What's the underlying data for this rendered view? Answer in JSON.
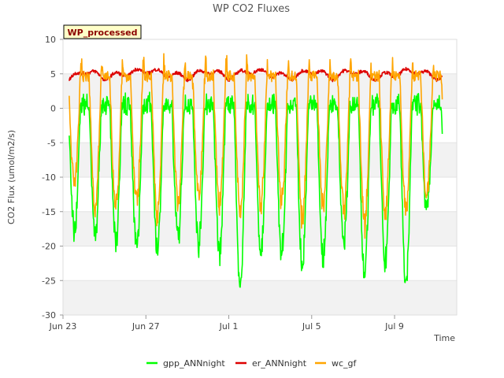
{
  "chart_data": {
    "type": "line",
    "title": "WP CO2 Fluxes",
    "xlabel": "Time",
    "ylabel": "CO2 Flux (umol/m2/s)",
    "badge": "WP_processed",
    "ylim": [
      -30,
      10
    ],
    "yticks": [
      10,
      5,
      0,
      -5,
      -10,
      -15,
      -20,
      -25,
      -30
    ],
    "xlim_days": [
      0,
      19
    ],
    "xticks": [
      {
        "day": 0,
        "label": "Jun 23"
      },
      {
        "day": 4,
        "label": "Jun 27"
      },
      {
        "day": 8,
        "label": "Jul 1"
      },
      {
        "day": 12,
        "label": "Jul 5"
      },
      {
        "day": 16,
        "label": "Jul 9"
      }
    ],
    "grid": true,
    "legend_position": "bottom-center",
    "series": [
      {
        "name": "gpp_ANNnight",
        "color": "#00ff00",
        "daily_min": [
          -18,
          -18.5,
          -19.5,
          -20.5,
          -20.5,
          -19,
          -19.5,
          -21,
          -26,
          -21,
          -20.5,
          -23,
          -22,
          -20,
          -24,
          -22,
          -25.5,
          -15
        ],
        "day_max": 1.5,
        "night_value": 0
      },
      {
        "name": "er_ANNnight",
        "color": "#dd0000",
        "values_by_day": [
          3.5,
          5.5,
          4.5,
          5,
          5.5,
          5,
          4.5,
          5.5,
          4.5,
          5.5,
          5,
          4.5,
          5.5,
          4.5,
          5.5,
          4.5,
          5,
          5.5,
          4.5,
          5
        ]
      },
      {
        "name": "wc_gf",
        "color": "#ffa500",
        "daily_min": [
          -11,
          -14,
          -14.5,
          -13.5,
          -15,
          -14,
          -12,
          -14,
          -15,
          -14,
          -13,
          -16,
          -14,
          -14.5,
          -17,
          -15,
          -15,
          -13
        ],
        "day_max": 6.5,
        "night_value": 4.5
      }
    ],
    "start_x_day": 0.3,
    "end_x_day": 18.3
  }
}
